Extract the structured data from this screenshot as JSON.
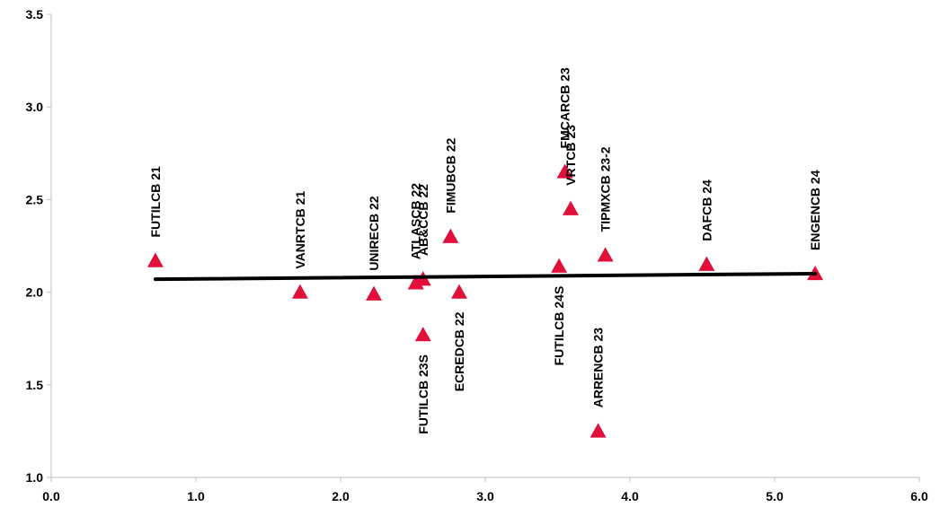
{
  "chart_data": {
    "type": "scatter",
    "title": "",
    "xlabel": "",
    "ylabel": "",
    "xlim": [
      0.0,
      6.0
    ],
    "ylim": [
      1.0,
      3.5
    ],
    "x_ticks": [
      "0.0",
      "1.0",
      "2.0",
      "3.0",
      "4.0",
      "5.0",
      "6.0"
    ],
    "y_ticks": [
      "1.0",
      "1.5",
      "2.0",
      "2.5",
      "3.0",
      "3.5"
    ],
    "grid": false,
    "marker": "triangle",
    "marker_color": "#e0103a",
    "trend_color": "#000000",
    "points": [
      {
        "label": "FUTILCB 21",
        "x": 0.72,
        "y": 2.17,
        "label_pos": "above"
      },
      {
        "label": "VANRTCB 21",
        "x": 1.72,
        "y": 2.0,
        "label_pos": "above"
      },
      {
        "label": "UNIRECB 22",
        "x": 2.23,
        "y": 1.99,
        "label_pos": "above"
      },
      {
        "label": "ATLASCB 22",
        "x": 2.52,
        "y": 2.05,
        "label_pos": "above"
      },
      {
        "label": "AB&CCB 22",
        "x": 2.57,
        "y": 2.07,
        "label_pos": "above"
      },
      {
        "label": "FUTILCB 23S",
        "x": 2.57,
        "y": 1.77,
        "label_pos": "below"
      },
      {
        "label": "FIMUBCB 22",
        "x": 2.76,
        "y": 2.3,
        "label_pos": "above"
      },
      {
        "label": "ECREDCB 22",
        "x": 2.82,
        "y": 2.0,
        "label_pos": "below"
      },
      {
        "label": "FUTILCB 24S",
        "x": 3.51,
        "y": 2.14,
        "label_pos": "below"
      },
      {
        "label": "FMCARCB 23",
        "x": 3.55,
        "y": 2.65,
        "label_pos": "above"
      },
      {
        "label": "VRTCB 23",
        "x": 3.59,
        "y": 2.45,
        "label_pos": "above"
      },
      {
        "label": "ARRENCB 23",
        "x": 3.78,
        "y": 1.25,
        "label_pos": "above"
      },
      {
        "label": "TIPMXCB 23-2",
        "x": 3.83,
        "y": 2.2,
        "label_pos": "above"
      },
      {
        "label": "DAFCB 24",
        "x": 4.53,
        "y": 2.15,
        "label_pos": "above"
      },
      {
        "label": "ENGENCB 24",
        "x": 5.28,
        "y": 2.1,
        "label_pos": "above"
      }
    ],
    "trendline": {
      "x": [
        0.72,
        5.28
      ],
      "y": [
        2.07,
        2.1
      ]
    }
  }
}
